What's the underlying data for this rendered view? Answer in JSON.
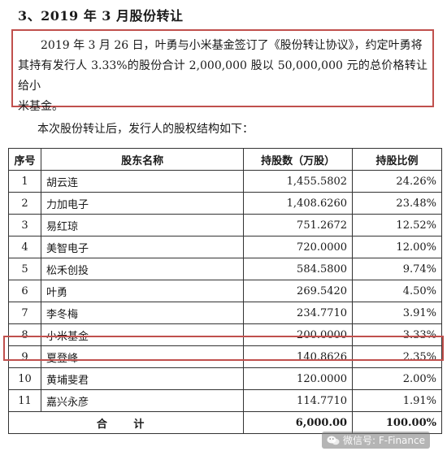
{
  "heading": "3、2019 年 3 月股份转让",
  "paragraph": {
    "line1": "2019 年 3 月 26 日，叶勇与小米基金签订了《股份转让协议》，约定叶勇将",
    "line2": "其持有发行人 3.33%的股份合计 2,000,000 股以 50,000,000 元的总价格转让给小",
    "line3": "米基金。"
  },
  "intro": "本次股份转让后，发行人的股权结构如下：",
  "table": {
    "headers": [
      "序号",
      "股东名称",
      "持股数（万股）",
      "持股比例"
    ],
    "rows": [
      {
        "no": "1",
        "name": "胡云连",
        "shares": "1,455.5802",
        "ratio": "24.26%"
      },
      {
        "no": "2",
        "name": "力加电子",
        "shares": "1,408.6260",
        "ratio": "23.48%"
      },
      {
        "no": "3",
        "name": "易红琼",
        "shares": "751.2672",
        "ratio": "12.52%"
      },
      {
        "no": "4",
        "name": "美智电子",
        "shares": "720.0000",
        "ratio": "12.00%"
      },
      {
        "no": "5",
        "name": "松禾创投",
        "shares": "584.5800",
        "ratio": "9.74%"
      },
      {
        "no": "6",
        "name": "叶勇",
        "shares": "269.5420",
        "ratio": "4.50%"
      },
      {
        "no": "7",
        "name": "李冬梅",
        "shares": "234.7710",
        "ratio": "3.91%"
      },
      {
        "no": "8",
        "name": "小米基金",
        "shares": "200.0000",
        "ratio": "3.33%"
      },
      {
        "no": "9",
        "name": "夏登峰",
        "shares": "140.8626",
        "ratio": "2.35%"
      },
      {
        "no": "10",
        "name": "黄埔斐君",
        "shares": "120.0000",
        "ratio": "2.00%"
      },
      {
        "no": "11",
        "name": "嘉兴永彦",
        "shares": "114.7710",
        "ratio": "1.91%"
      }
    ],
    "total": {
      "label": "合 计",
      "shares": "6,000.00",
      "ratio": "100.00%"
    }
  },
  "watermark": {
    "text": "微信号: F-Finance",
    "icon": "wechat-icon"
  },
  "colors": {
    "highlight": "#c0504d",
    "border": "#333333"
  }
}
